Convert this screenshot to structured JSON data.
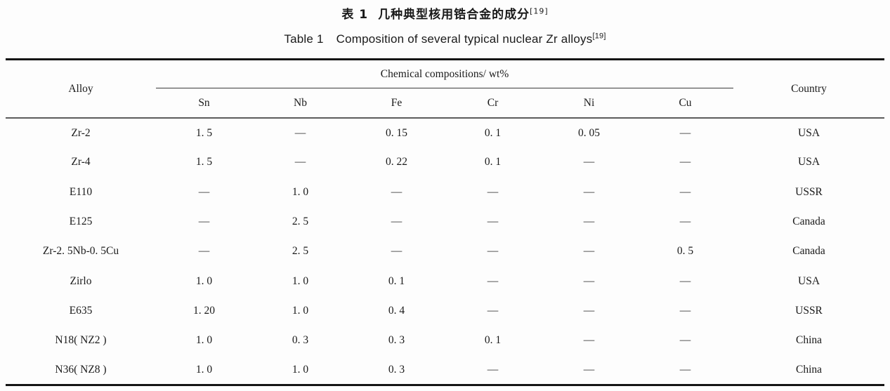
{
  "title_cn": {
    "label": "表 1",
    "text": "几种典型核用锆合金的成分",
    "ref": "[19]"
  },
  "title_en": {
    "label": "Table 1",
    "text": "Composition of several typical nuclear Zr alloys",
    "ref": "[19]"
  },
  "table": {
    "header": {
      "alloy": "Alloy",
      "group": "Chemical compositions/ wt%",
      "elements": [
        "Sn",
        "Nb",
        "Fe",
        "Cr",
        "Ni",
        "Cu"
      ],
      "country": "Country"
    },
    "rows": [
      {
        "cells": [
          "Zr-2",
          "1. 5",
          "—",
          "0. 15",
          "0. 1",
          "0. 05",
          "—",
          "USA"
        ]
      },
      {
        "cells": [
          "Zr-4",
          "1. 5",
          "—",
          "0. 22",
          "0. 1",
          "—",
          "—",
          "USA"
        ]
      },
      {
        "cells": [
          "E110",
          "—",
          "1. 0",
          "—",
          "—",
          "—",
          "—",
          "USSR"
        ]
      },
      {
        "cells": [
          "E125",
          "—",
          "2. 5",
          "—",
          "—",
          "—",
          "—",
          "Canada"
        ]
      },
      {
        "cells": [
          "Zr-2. 5Nb-0. 5Cu",
          "—",
          "2. 5",
          "—",
          "—",
          "—",
          "0. 5",
          "Canada"
        ]
      },
      {
        "cells": [
          "Zirlo",
          "1. 0",
          "1. 0",
          "0. 1",
          "—",
          "—",
          "—",
          "USA"
        ]
      },
      {
        "cells": [
          "E635",
          "1. 20",
          "1. 0",
          "0. 4",
          "—",
          "—",
          "—",
          "USSR"
        ]
      },
      {
        "cells": [
          "N18( NZ2 )",
          "1. 0",
          "0. 3",
          "0. 3",
          "0. 1",
          "—",
          "—",
          "China"
        ]
      },
      {
        "cells": [
          "N36( NZ8 )",
          "1. 0",
          "1. 0",
          "0. 3",
          "—",
          "—",
          "—",
          "China"
        ]
      }
    ]
  }
}
